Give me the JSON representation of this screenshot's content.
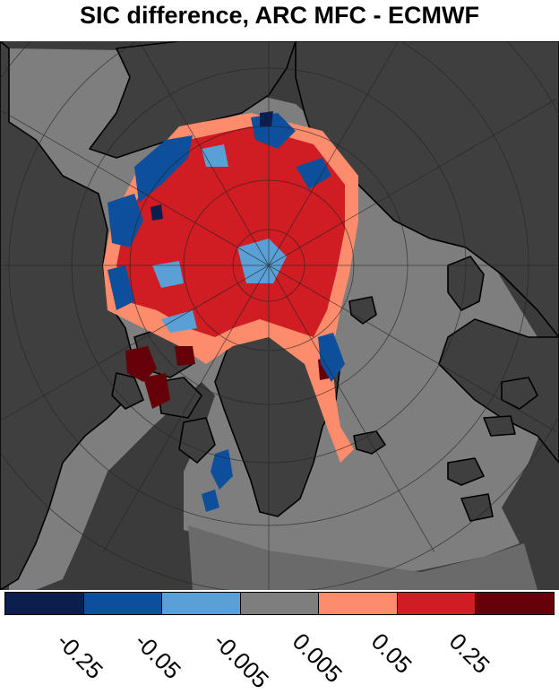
{
  "title": "SIC difference, ARC MFC - ECMWF",
  "colors": {
    "land": "#3f3f3f",
    "ocean_background": "#7e7e7e",
    "outside_domain": "#3b3b3b",
    "coastline": "#000000",
    "gridline": "#2a2a2a"
  },
  "colorbar": {
    "segments": [
      "#0b1e4e",
      "#0e4f9b",
      "#5aa0d6",
      "#7e7e7e",
      "#fc8c6c",
      "#d01c23",
      "#650108"
    ],
    "tick_labels": [
      "-0.25",
      "-0.05",
      "-0.005",
      "0.005",
      "0.05",
      "0.25"
    ]
  }
}
